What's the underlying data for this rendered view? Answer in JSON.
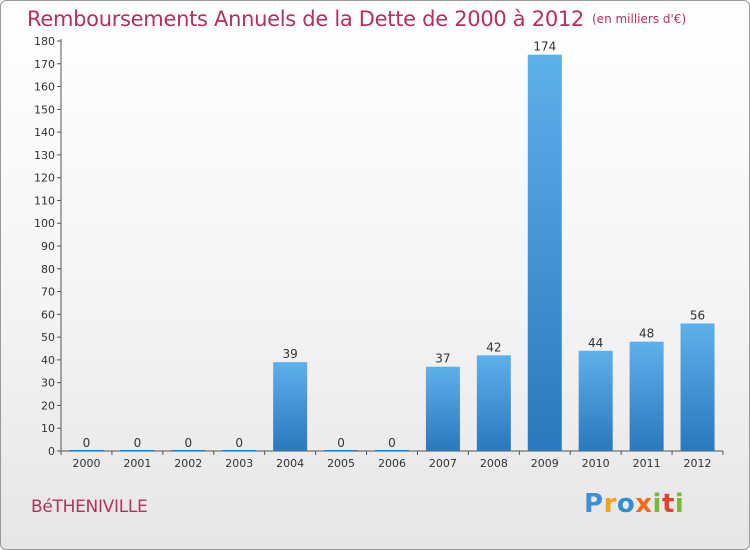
{
  "title": "Remboursements Annuels de la Dette de 2000 à 2012",
  "subtitle": "(en milliers d'€)",
  "commune": "BéTHENIVILLE",
  "brand": {
    "letters": [
      "P",
      "r",
      "o",
      "x",
      "i",
      "t",
      "i"
    ],
    "colors": [
      "#3f8fd8",
      "#f2a51c",
      "#2f8fd3",
      "#f06a1c",
      "#7ab83a",
      "#e2432f",
      "#7ab83a"
    ]
  },
  "chart_data": {
    "type": "bar",
    "title": "Remboursements Annuels de la Dette de 2000 à 2012",
    "categories": [
      "2000",
      "2001",
      "2002",
      "2003",
      "2004",
      "2005",
      "2006",
      "2007",
      "2008",
      "2009",
      "2010",
      "2011",
      "2012"
    ],
    "values": [
      0,
      0,
      0,
      0,
      39,
      0,
      0,
      37,
      42,
      174,
      44,
      48,
      56
    ],
    "labels": [
      "0",
      "0",
      "0",
      "0",
      "39",
      "0",
      "0",
      "37",
      "42",
      "174",
      "44",
      "48",
      "56"
    ],
    "ylim": [
      0,
      180
    ],
    "yticks": [
      0,
      10,
      20,
      30,
      40,
      50,
      60,
      70,
      80,
      90,
      100,
      110,
      120,
      130,
      140,
      150,
      160,
      170,
      180
    ],
    "grid": false,
    "bar_color": "#3a8fd6"
  }
}
